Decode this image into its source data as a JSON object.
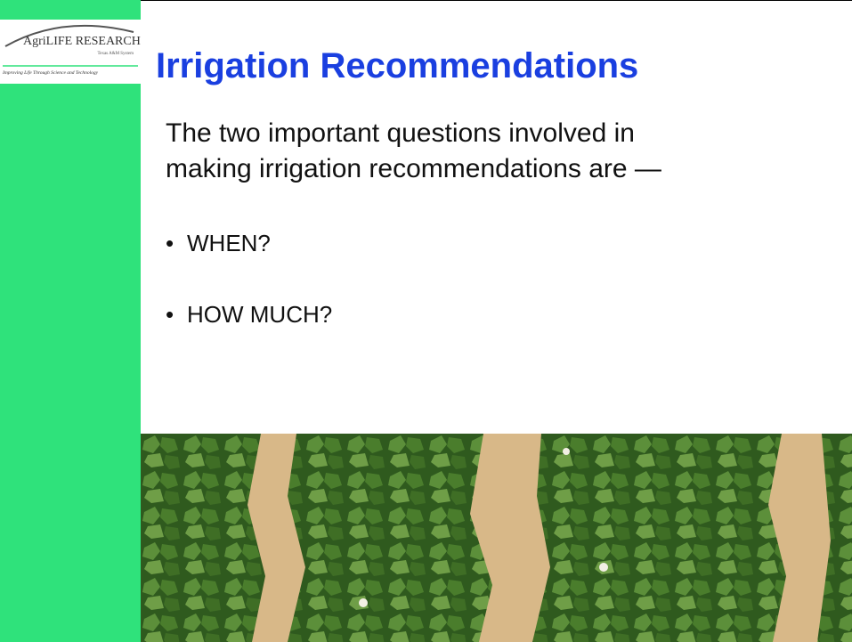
{
  "logo": {
    "brand": "AgriLIFE RESEARCH",
    "system": "Texas A&M System",
    "tagline": "Improving Life Through Science and Technology"
  },
  "slide": {
    "title": "Irrigation Recommendations",
    "intro": [
      "The two important questions involved in",
      "making irrigation recommendations are —"
    ],
    "bullets": [
      "WHEN?",
      "HOW MUCH?"
    ]
  }
}
